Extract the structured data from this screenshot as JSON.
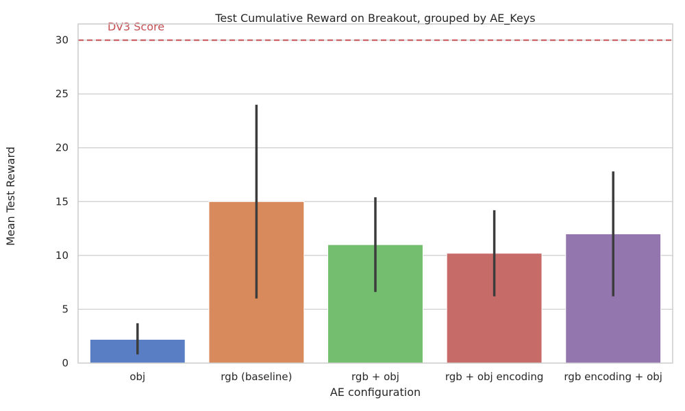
{
  "chart_data": {
    "type": "bar",
    "title": "Test Cumulative Reward on Breakout, grouped by AE_Keys",
    "xlabel": "AE configuration",
    "ylabel": "Mean Test Reward",
    "categories": [
      "obj",
      "rgb (baseline)",
      "rgb + obj",
      "rgb + obj encoding",
      "rgb encoding + obj"
    ],
    "values": [
      2.2,
      15.0,
      11.0,
      10.2,
      12.0
    ],
    "error_low": [
      0.8,
      6.0,
      6.6,
      6.2,
      6.2
    ],
    "error_high": [
      3.7,
      24.0,
      15.4,
      14.2,
      17.8
    ],
    "colors": [
      "#5a7ec4",
      "#d88a5c",
      "#73bf6f",
      "#c76b69",
      "#9476ae"
    ],
    "ylim": [
      0,
      31.5
    ],
    "yticks": [
      0,
      5,
      10,
      15,
      20,
      25,
      30
    ],
    "grid": "horizontal",
    "reference_line": {
      "value": 30,
      "label": "DV3 Score",
      "color": "#c44e52",
      "style": "dashed"
    }
  }
}
